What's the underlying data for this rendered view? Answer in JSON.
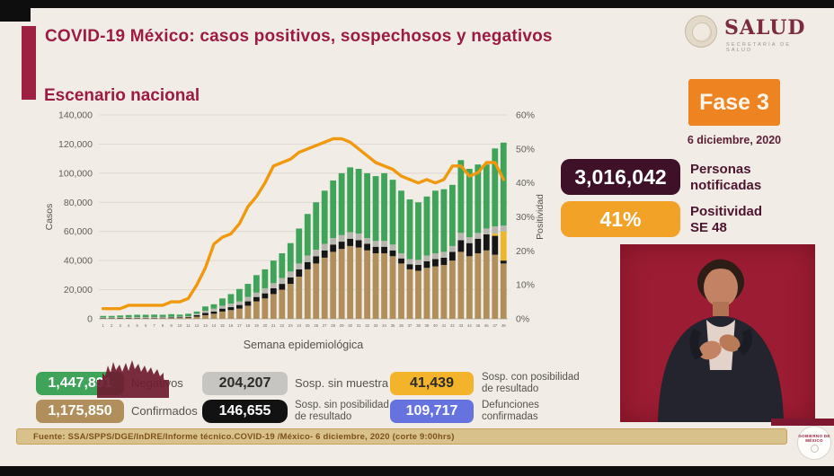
{
  "header": {
    "title": "COVID-19 México: casos positivos, sospechosos y negativos",
    "subtitle": "Escenario nacional",
    "logo": {
      "word": "SALUD",
      "subtext": "SECRETARÍA DE SALUD"
    }
  },
  "status": {
    "phase": "Fase 3",
    "date": "6 diciembre, 2020",
    "notified_value": "3,016,042",
    "notified_label": "Personas\nnotificadas",
    "positivity_value": "41%",
    "positivity_label": "Positividad\nSE 48"
  },
  "chart_data": {
    "type": "bar",
    "subtype": "stacked-bars-with-line",
    "xlabel": "Semana epidemiológica",
    "ylabel_left": "Casos",
    "ylabel_right": "Positividad",
    "ylim_left": [
      0,
      140000
    ],
    "ylim_right": [
      0,
      60
    ],
    "yticks_left": [
      "0",
      "20,000",
      "40,000",
      "60,000",
      "80,000",
      "100,000",
      "120,000",
      "140,000"
    ],
    "yticks_right": [
      "0%",
      "10%",
      "20%",
      "30%",
      "40%",
      "50%",
      "60%"
    ],
    "grid": true,
    "categories": [
      1,
      2,
      3,
      4,
      5,
      6,
      7,
      8,
      9,
      10,
      11,
      12,
      13,
      14,
      15,
      16,
      17,
      18,
      19,
      20,
      21,
      22,
      23,
      24,
      25,
      26,
      27,
      28,
      29,
      30,
      31,
      32,
      33,
      34,
      35,
      36,
      37,
      38,
      39,
      40,
      41,
      42,
      43,
      44,
      45,
      46,
      47,
      48
    ],
    "series": [
      {
        "name": "Confirmados",
        "color": "#b08f5c",
        "values": [
          200,
          200,
          300,
          300,
          400,
          400,
          400,
          500,
          500,
          600,
          800,
          1500,
          2500,
          3500,
          5000,
          6000,
          7000,
          9000,
          12000,
          14000,
          17000,
          20000,
          24000,
          29000,
          34000,
          38000,
          42000,
          46000,
          48000,
          50000,
          49000,
          47000,
          45000,
          45000,
          43000,
          38000,
          34000,
          33000,
          35000,
          36000,
          37000,
          40000,
          46000,
          43000,
          45000,
          47000,
          44000,
          38000
        ]
      },
      {
        "name": "Sosp. sin posibilidad de resultado",
        "color": "#161616",
        "values": [
          300,
          300,
          300,
          300,
          300,
          300,
          300,
          300,
          400,
          400,
          500,
          1000,
          1500,
          1500,
          2000,
          2000,
          2500,
          3000,
          3000,
          3500,
          4000,
          4000,
          4500,
          5000,
          5000,
          5000,
          5000,
          5000,
          5000,
          5000,
          5000,
          4500,
          4500,
          4500,
          4000,
          3500,
          3500,
          4000,
          4500,
          5000,
          5000,
          6000,
          8000,
          9000,
          10000,
          11000,
          13000,
          2000
        ]
      },
      {
        "name": "Sosp. con posibilidad de resultado",
        "color": "#eeb62b",
        "values": [
          0,
          0,
          0,
          0,
          0,
          0,
          0,
          0,
          0,
          0,
          0,
          0,
          0,
          0,
          0,
          0,
          0,
          0,
          0,
          0,
          0,
          0,
          0,
          0,
          0,
          0,
          0,
          0,
          0,
          0,
          0,
          0,
          0,
          0,
          0,
          0,
          0,
          0,
          0,
          0,
          0,
          0,
          0,
          0,
          0,
          0,
          1500,
          20000
        ]
      },
      {
        "name": "Sosp. sin muestra",
        "color": "#b7b6ae",
        "values": [
          500,
          500,
          500,
          500,
          500,
          500,
          500,
          500,
          500,
          500,
          500,
          1000,
          1500,
          2000,
          2000,
          2500,
          2500,
          3000,
          3000,
          3500,
          3500,
          4000,
          4000,
          4000,
          4500,
          4500,
          4500,
          4500,
          4500,
          4500,
          4500,
          4000,
          4000,
          4000,
          4000,
          3500,
          3500,
          3500,
          4000,
          4000,
          4000,
          4000,
          5000,
          4000,
          4000,
          4000,
          5000,
          4000
        ]
      },
      {
        "name": "Negativos",
        "color": "#3fa35a",
        "values": [
          1000,
          1000,
          1200,
          1500,
          1600,
          1600,
          1700,
          1500,
          1800,
          1400,
          1700,
          1500,
          3000,
          3000,
          5000,
          6500,
          8500,
          9000,
          12000,
          13000,
          15500,
          17000,
          19500,
          24000,
          28500,
          32500,
          36500,
          39500,
          42500,
          44500,
          44500,
          44500,
          44500,
          46500,
          44500,
          43000,
          41000,
          39500,
          40500,
          43000,
          43000,
          42000,
          50000,
          47000,
          47000,
          44000,
          53500,
          57000
        ]
      }
    ],
    "line": {
      "name": "Positividad",
      "color": "#f0980e",
      "values": [
        3,
        3,
        3,
        4,
        4,
        4,
        4,
        4,
        5,
        5,
        6,
        10,
        15,
        22,
        24,
        25,
        28,
        33,
        36,
        40,
        45,
        46,
        47,
        49,
        50,
        51,
        52,
        53,
        53,
        52,
        50,
        48,
        46,
        45,
        44,
        42,
        41,
        40,
        41,
        40,
        41,
        45,
        45,
        42,
        43,
        46,
        46,
        41
      ]
    }
  },
  "legend": {
    "items": [
      {
        "value": "1,447,891",
        "label": "Negativos",
        "bg": "#3fa35a",
        "fg": "#ffffff"
      },
      {
        "value": "204,207",
        "label": "Sosp. sin muestra",
        "bg": "#c6c5c1",
        "fg": "#2b2b28"
      },
      {
        "value": "41,439",
        "label": "Sosp. con posibilidad\nde resultado",
        "bg": "#f3b32b",
        "fg": "#2b2b28"
      },
      {
        "value": "1,175,850",
        "label": "Confirmados",
        "bg": "#b08f5c",
        "fg": "#ffffff"
      },
      {
        "value": "146,655",
        "label": "Sosp. sin posibilidad\nde resultado",
        "bg": "#121212",
        "fg": "#ffffff"
      },
      {
        "value": "109,717",
        "label": "Defunciones\nconfirmadas",
        "bg": "#6673de",
        "fg": "#ffffff"
      }
    ]
  },
  "footer": {
    "source": "Fuente: SSA/SPPS/DGE/InDRE/Informe técnico.COVID-19 /México- 6 diciembre, 2020 (corte 9:00hrs)"
  },
  "gobierno_logo": {
    "text": "GOBIERNO DE\nMÉXICO"
  }
}
